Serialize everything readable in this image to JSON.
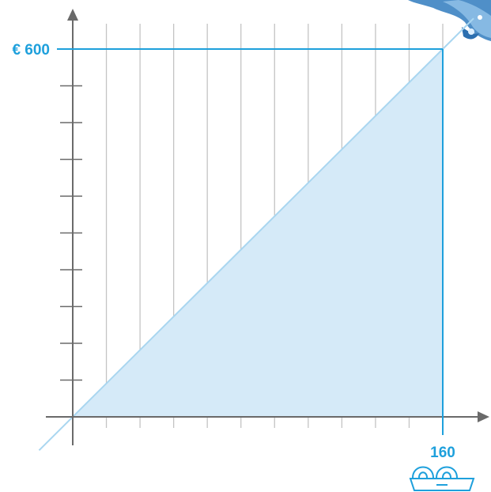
{
  "chart_data": {
    "type": "area",
    "title": "",
    "xlabel": "",
    "ylabel": "",
    "xlim": [
      0,
      160
    ],
    "ylim": [
      0,
      600
    ],
    "x": [
      0,
      160
    ],
    "series": [
      {
        "values": [
          0,
          600
        ]
      }
    ],
    "y_max_label": "€ 600",
    "x_max_label": "160",
    "grid": true,
    "vertical_gridlines": 11,
    "y_minor_ticks": 10,
    "colors": {
      "accent": "#1ea0dc",
      "fill": "#d5eaf8",
      "diagonal": "#a9d6f0",
      "axis": "#6a6a6a",
      "grid": "#c4c4c4"
    },
    "icons": [
      "water-splash-icon",
      "basin-icon"
    ]
  }
}
